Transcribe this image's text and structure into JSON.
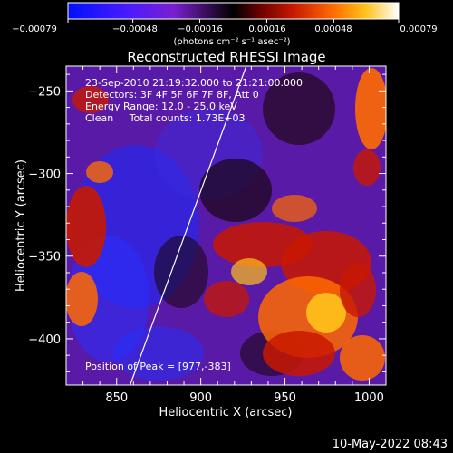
{
  "chart_data": {
    "type": "heatmap",
    "title": "Reconstructed RHESSI Image",
    "xlabel": "Heliocentric X (arcsec)",
    "ylabel": "Heliocentric Y (arcsec)",
    "xlim": [
      820,
      1010
    ],
    "ylim": [
      -428,
      -235
    ],
    "x_ticks": [
      850,
      900,
      950,
      1000
    ],
    "x_tick_labels": [
      "850",
      "900",
      "950",
      "1000"
    ],
    "y_ticks": [
      -250,
      -300,
      -350,
      -400
    ],
    "y_tick_labels": [
      "−250",
      "−300",
      "−350",
      "−400"
    ],
    "colorbar": {
      "min": -0.00079,
      "max": 0.00079,
      "ticks": [
        -0.00079,
        -0.00048,
        -0.00016,
        0.00016,
        0.00048,
        0.00079
      ],
      "tick_labels": [
        "−0.00079",
        "−0.00048",
        "−0.00016",
        "0.00016",
        "0.00048",
        "0.00079"
      ],
      "unit_label": "(photons cm⁻² s⁻¹ asec⁻²)"
    },
    "annotations": {
      "time": "23-Sep-2010 21:19:32.000 to 21:21:00.000",
      "detectors": "Detectors: 3F 4F 5F 6F 7F 8F, Att 0",
      "energy": "Energy Range: 12.0 - 25.0 keV",
      "clean": "Clean     Total counts: 1.73E+03",
      "peak": "Position of Peak = [977,-383]"
    },
    "limb_line": [
      [
        858,
        -428
      ],
      [
        927,
        -235
      ]
    ],
    "peak": [
      977,
      -383
    ],
    "grid": false,
    "legend": "none"
  },
  "footer": {
    "date": "10-May-2022 08:43"
  },
  "colors": {
    "background": "#000000",
    "foreground": "#ffffff",
    "limb": "#ffffff"
  }
}
